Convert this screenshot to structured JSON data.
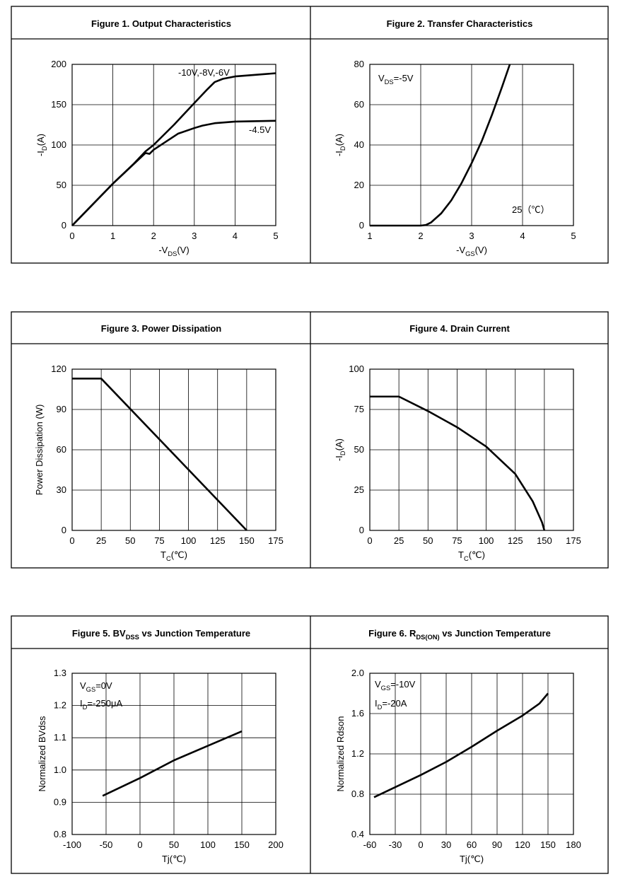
{
  "chart_data": [
    {
      "type": "line",
      "title": [
        {
          "text": "Figure 1. Output Characteristics"
        }
      ],
      "xlabel": [
        {
          "text": "-V"
        },
        {
          "text": "DS",
          "sub": true
        },
        {
          "text": "(V)"
        }
      ],
      "ylabel": [
        {
          "text": "-I"
        },
        {
          "text": "D",
          "sub": true
        },
        {
          "text": "(A)"
        }
      ],
      "xlim": [
        0,
        5
      ],
      "xticks": [
        0,
        1,
        2,
        3,
        4,
        5
      ],
      "ylim": [
        0,
        200
      ],
      "yticks": [
        0,
        50,
        100,
        150,
        200
      ],
      "grid": true,
      "series": [
        {
          "name": "-10V,-8V,-6V",
          "color": "#000000",
          "x": [
            0,
            0.5,
            1,
            1.5,
            1.8,
            2,
            2.5,
            3,
            3.3,
            3.5,
            3.7,
            4,
            4.5,
            5
          ],
          "values": [
            0,
            26,
            52,
            76,
            92,
            100,
            125,
            152,
            168,
            178,
            182,
            185,
            187,
            189
          ]
        },
        {
          "name": "-4.5V",
          "color": "#000000",
          "x": [
            0,
            1,
            1.8,
            1.9,
            2,
            2.3,
            2.6,
            3,
            3.2,
            3.5,
            4,
            5
          ],
          "values": [
            0,
            52,
            90,
            89,
            94,
            104,
            114,
            121,
            124,
            127,
            129,
            130
          ]
        }
      ],
      "annotations": []
    },
    {
      "type": "line",
      "title": [
        {
          "text": "Figure 2. Transfer Characteristics"
        }
      ],
      "xlabel": [
        {
          "text": "-V"
        },
        {
          "text": "GS",
          "sub": true
        },
        {
          "text": "(V)"
        }
      ],
      "ylabel": [
        {
          "text": "-I"
        },
        {
          "text": "D",
          "sub": true
        },
        {
          "text": "(A)"
        }
      ],
      "xlim": [
        1,
        5
      ],
      "xticks": [
        1,
        2,
        3,
        4,
        5
      ],
      "ylim": [
        0,
        80
      ],
      "yticks": [
        0,
        20,
        40,
        60,
        80
      ],
      "grid": true,
      "series": [
        {
          "color": "#000000",
          "x": [
            1,
            2,
            2.1,
            2.2,
            2.4,
            2.6,
            2.8,
            3,
            3.2,
            3.4,
            3.6,
            3.75
          ],
          "values": [
            0,
            0,
            0.3,
            1.5,
            6,
            12.5,
            21,
            31,
            42,
            55,
            69,
            80
          ]
        }
      ],
      "annotations": [
        [
          {
            "text": "V"
          },
          {
            "text": "DS",
            "sub": true
          },
          {
            "text": "=-5V"
          }
        ],
        [
          {
            "text": "25（℃）"
          }
        ]
      ]
    },
    {
      "type": "line",
      "title": [
        {
          "text": "Figure 3. Power Dissipation"
        }
      ],
      "xlabel": [
        {
          "text": "T"
        },
        {
          "text": "C",
          "sub": true
        },
        {
          "text": "(℃)"
        }
      ],
      "ylabel": [
        {
          "text": "Power Dissipation (W)"
        }
      ],
      "xlim": [
        0,
        175
      ],
      "xticks": [
        0,
        25,
        50,
        75,
        100,
        125,
        150,
        175
      ],
      "ylim": [
        0,
        120
      ],
      "yticks": [
        0,
        30,
        60,
        90,
        120
      ],
      "grid": true,
      "series": [
        {
          "color": "#000000",
          "x": [
            0,
            25,
            150
          ],
          "values": [
            113,
            113,
            0
          ]
        }
      ],
      "annotations": []
    },
    {
      "type": "line",
      "title": [
        {
          "text": "Figure 4. Drain Current"
        }
      ],
      "xlabel": [
        {
          "text": "T"
        },
        {
          "text": "C",
          "sub": true
        },
        {
          "text": "(℃)"
        }
      ],
      "ylabel": [
        {
          "text": "-I"
        },
        {
          "text": "D",
          "sub": true
        },
        {
          "text": "(A)"
        }
      ],
      "xlim": [
        0,
        175
      ],
      "xticks": [
        0,
        25,
        50,
        75,
        100,
        125,
        150,
        175
      ],
      "ylim": [
        0,
        100
      ],
      "yticks": [
        0,
        25,
        50,
        75,
        100
      ],
      "grid": true,
      "series": [
        {
          "color": "#000000",
          "x": [
            0,
            25,
            50,
            75,
            100,
            125,
            140,
            148,
            150
          ],
          "values": [
            83,
            83,
            74,
            64,
            52,
            35,
            18,
            5,
            0
          ]
        }
      ],
      "annotations": []
    },
    {
      "type": "line",
      "title": [
        {
          "text": "Figure 5. BV"
        },
        {
          "text": "DSS",
          "sub": true
        },
        {
          "text": " vs Junction Temperature"
        }
      ],
      "xlabel": [
        {
          "text": "Tj(℃)"
        }
      ],
      "ylabel": [
        {
          "text": "Normalized  BVdss"
        }
      ],
      "xlim": [
        -100,
        200
      ],
      "xticks": [
        -100,
        -50,
        0,
        50,
        100,
        150,
        200
      ],
      "ylim": [
        0.8,
        1.3
      ],
      "yticks": [
        0.8,
        0.9,
        {
          "value": 1,
          "label": "1.0"
        },
        1.1,
        1.2,
        1.3
      ],
      "grid": true,
      "series": [
        {
          "color": "#000000",
          "x": [
            -55,
            0,
            50,
            100,
            150
          ],
          "values": [
            0.92,
            0.975,
            1.03,
            1.075,
            1.12
          ]
        }
      ],
      "annotations": [
        [
          {
            "text": "V"
          },
          {
            "text": "GS",
            "sub": true
          },
          {
            "text": "=0V"
          }
        ],
        [
          {
            "text": "I"
          },
          {
            "text": "D",
            "sub": true
          },
          {
            "text": "=-250μA"
          }
        ]
      ]
    },
    {
      "type": "line",
      "title": [
        {
          "text": "Figure 6. R"
        },
        {
          "text": "DS(ON)",
          "sub": true
        },
        {
          "text": " vs Junction Temperature"
        }
      ],
      "xlabel": [
        {
          "text": "Tj(℃)"
        }
      ],
      "ylabel": [
        {
          "text": "Normalized  Rdson"
        }
      ],
      "xlim": [
        -60,
        180
      ],
      "xticks": [
        -60,
        -30,
        0,
        30,
        60,
        90,
        120,
        150,
        180
      ],
      "ylim": [
        0.4,
        2
      ],
      "yticks": [
        0.4,
        0.8,
        1.2,
        1.6,
        {
          "value": 2,
          "label": "2.0"
        }
      ],
      "grid": true,
      "series": [
        {
          "color": "#000000",
          "x": [
            -55,
            -30,
            0,
            30,
            60,
            90,
            120,
            140,
            150
          ],
          "values": [
            0.77,
            0.87,
            0.99,
            1.12,
            1.27,
            1.43,
            1.58,
            1.7,
            1.8
          ]
        }
      ],
      "annotations": [
        [
          {
            "text": "V"
          },
          {
            "text": "GS",
            "sub": true
          },
          {
            "text": "=-10V"
          }
        ],
        [
          {
            "text": "I"
          },
          {
            "text": "D",
            "sub": true
          },
          {
            "text": "=-20A"
          }
        ]
      ]
    }
  ]
}
